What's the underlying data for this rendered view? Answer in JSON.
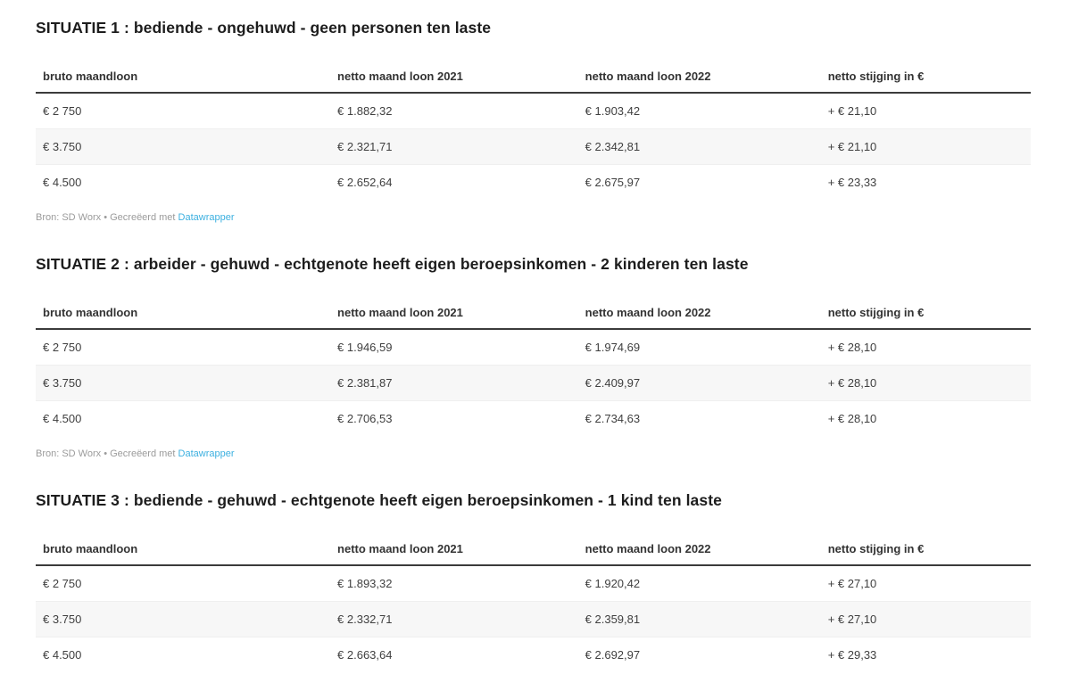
{
  "columns": [
    "bruto maandloon",
    "netto maand loon 2021",
    "netto maand loon 2022",
    "netto stijging in €"
  ],
  "sections": [
    {
      "title": "SITUATIE 1 : bediende - ongehuwd - geen personen ten laste",
      "rows": [
        [
          "€ 2 750",
          "€ 1.882,32",
          "€ 1.903,42",
          "+ € 21,10"
        ],
        [
          "€ 3.750",
          "€ 2.321,71",
          "€ 2.342,81",
          "+ € 21,10"
        ],
        [
          "€ 4.500",
          "€ 2.652,64",
          "€ 2.675,97",
          "+ € 23,33"
        ]
      ],
      "footer": {
        "prefix": "Bron: SD Worx • Gecreëerd met ",
        "link": "Datawrapper"
      }
    },
    {
      "title": "SITUATIE 2 : arbeider - gehuwd - echtgenote heeft eigen beroepsinkomen - 2 kinderen ten laste",
      "rows": [
        [
          "€ 2 750",
          "€ 1.946,59",
          "€ 1.974,69",
          "+ € 28,10"
        ],
        [
          "€ 3.750",
          "€ 2.381,87",
          "€ 2.409,97",
          "+ € 28,10"
        ],
        [
          "€ 4.500",
          "€ 2.706,53",
          "€ 2.734,63",
          "+ € 28,10"
        ]
      ],
      "footer": {
        "prefix": "Bron: SD Worx • Gecreëerd met ",
        "link": "Datawrapper"
      }
    },
    {
      "title": "SITUATIE 3 : bediende - gehuwd - echtgenote heeft eigen beroepsinkomen - 1 kind ten laste",
      "rows": [
        [
          "€ 2 750",
          "€ 1.893,32",
          "€ 1.920,42",
          "+ € 27,10"
        ],
        [
          "€ 3.750",
          "€ 2.332,71",
          "€ 2.359,81",
          "+ € 27,10"
        ],
        [
          "€ 4.500",
          "€ 2.663,64",
          "€ 2.692,97",
          "+ € 29,33"
        ]
      ]
    }
  ],
  "colors": {
    "title_text": "#1d1d1d",
    "header_text": "#333333",
    "cell_text": "#3f3f3f",
    "stripe_row": "#f7f7f7",
    "header_rule": "#3b3b3b",
    "footer_text": "#9b9b9b",
    "link_blue": "#3cb0e0"
  },
  "chart_data": [
    {
      "type": "table",
      "title": "SITUATIE 1 : bediende - ongehuwd - geen personen ten laste",
      "columns": [
        "bruto maandloon",
        "netto maand loon 2021",
        "netto maand loon 2022",
        "netto stijging in €"
      ],
      "rows": [
        [
          "€ 2 750",
          "€ 1.882,32",
          "€ 1.903,42",
          "+ € 21,10"
        ],
        [
          "€ 3.750",
          "€ 2.321,71",
          "€ 2.342,81",
          "+ € 21,10"
        ],
        [
          "€ 4.500",
          "€ 2.652,64",
          "€ 2.675,97",
          "+ € 23,33"
        ]
      ],
      "source": "Bron: SD Worx • Gecreëerd met Datawrapper"
    },
    {
      "type": "table",
      "title": "SITUATIE 2 : arbeider - gehuwd - echtgenote heeft eigen beroepsinkomen - 2 kinderen ten laste",
      "columns": [
        "bruto maandloon",
        "netto maand loon 2021",
        "netto maand loon 2022",
        "netto stijging in €"
      ],
      "rows": [
        [
          "€ 2 750",
          "€ 1.946,59",
          "€ 1.974,69",
          "+ € 28,10"
        ],
        [
          "€ 3.750",
          "€ 2.381,87",
          "€ 2.409,97",
          "+ € 28,10"
        ],
        [
          "€ 4.500",
          "€ 2.706,53",
          "€ 2.734,63",
          "+ € 28,10"
        ]
      ],
      "source": "Bron: SD Worx • Gecreëerd met Datawrapper"
    },
    {
      "type": "table",
      "title": "SITUATIE 3 : bediende - gehuwd - echtgenote heeft eigen beroepsinkomen - 1 kind ten laste",
      "columns": [
        "bruto maandloon",
        "netto maand loon 2021",
        "netto maand loon 2022",
        "netto stijging in €"
      ],
      "rows": [
        [
          "€ 2 750",
          "€ 1.893,32",
          "€ 1.920,42",
          "+ € 27,10"
        ],
        [
          "€ 3.750",
          "€ 2.332,71",
          "€ 2.359,81",
          "+ € 27,10"
        ],
        [
          "€ 4.500",
          "€ 2.663,64",
          "€ 2.692,97",
          "+ € 29,33"
        ]
      ]
    }
  ]
}
